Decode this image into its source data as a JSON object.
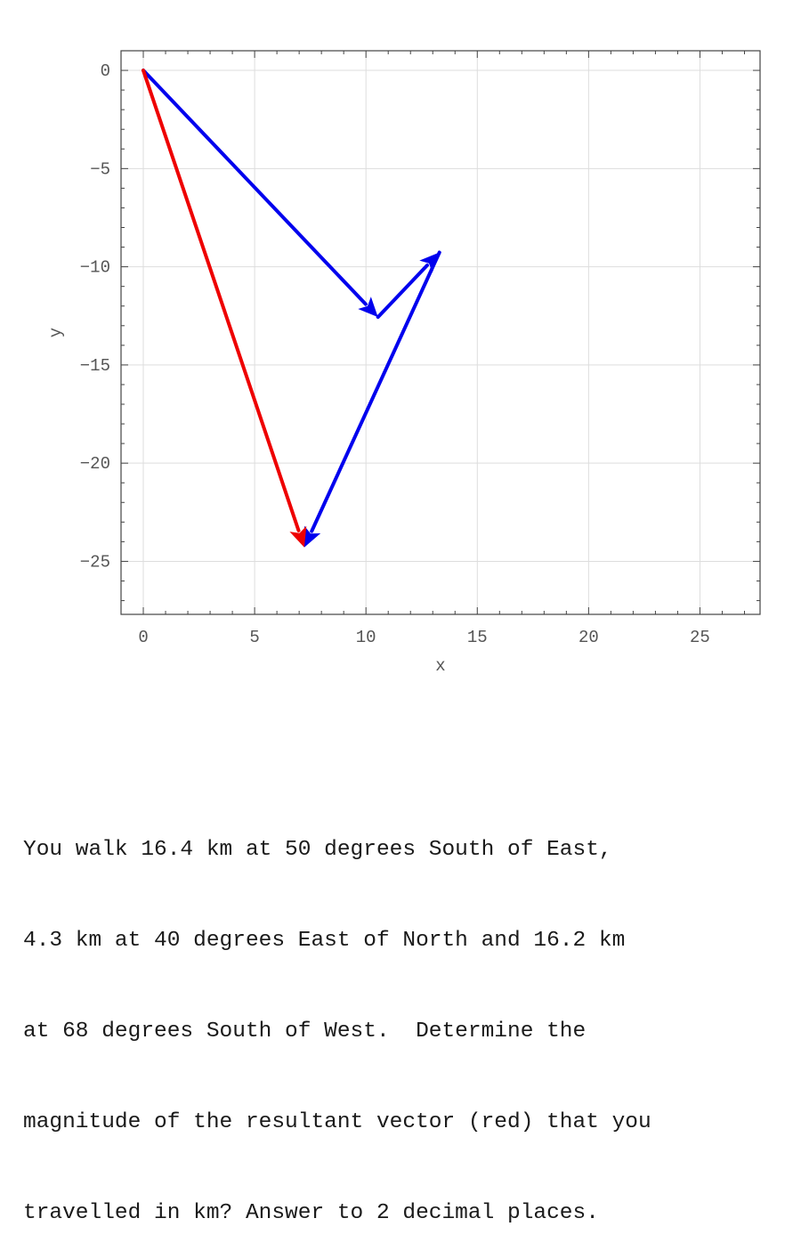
{
  "chart_data": {
    "type": "vector-diagram",
    "xlabel": "x",
    "ylabel": "y",
    "xlim": [
      -1,
      27.7
    ],
    "ylim": [
      -27.7,
      1
    ],
    "xticks": [
      0,
      5,
      10,
      15,
      20,
      25
    ],
    "yticks": [
      0,
      -5,
      -10,
      -15,
      -20,
      -25
    ],
    "grid": true,
    "vectors": [
      {
        "color": "#0000ee",
        "from": [
          0,
          0
        ],
        "to": [
          10.54,
          -12.56
        ]
      },
      {
        "color": "#0000ee",
        "from": [
          10.54,
          -12.56
        ],
        "to": [
          13.3,
          -9.27
        ]
      },
      {
        "color": "#0000ee",
        "from": [
          13.3,
          -9.27
        ],
        "to": [
          7.23,
          -24.29
        ]
      },
      {
        "color": "#ee0000",
        "from": [
          0,
          0
        ],
        "to": [
          7.23,
          -24.29
        ]
      }
    ]
  },
  "question": {
    "lines": [
      "You walk 16.4 km at 50 degrees South of East,",
      "4.3 km at 40 degrees East of North and 16.2 km",
      "at 68 degrees South of West.  Determine the",
      "magnitude of the resultant vector (red) that you",
      "travelled in km? Answer to 2 decimal places."
    ]
  }
}
